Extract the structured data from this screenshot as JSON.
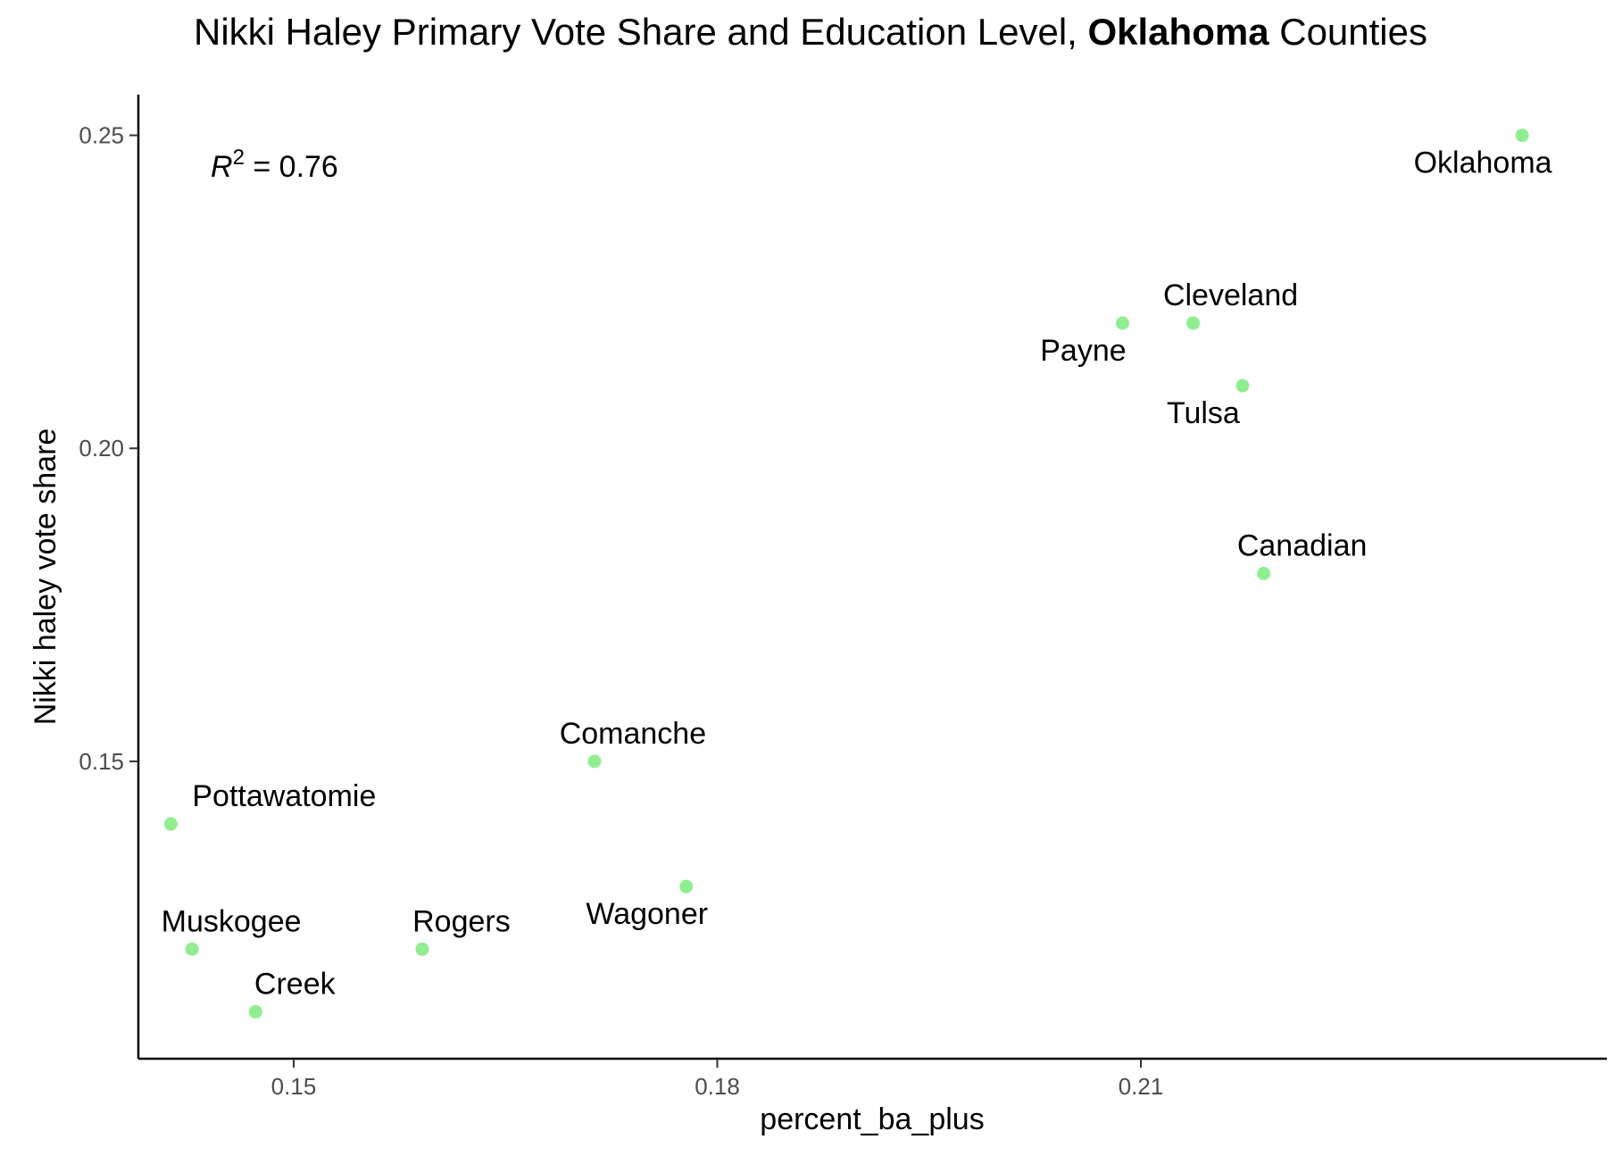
{
  "chart_data": {
    "type": "scatter",
    "title_parts": [
      {
        "text": "Nikki Haley Primary Vote Share and Education Level, ",
        "bold": false
      },
      {
        "text": "Oklahoma",
        "bold": true
      },
      {
        "text": " Counties",
        "bold": false
      }
    ],
    "xlabel": "percent_ba_plus",
    "ylabel": "Nikki haley vote share",
    "xlim": [
      0.139,
      0.243
    ],
    "ylim": [
      0.1025,
      0.2565
    ],
    "x_ticks": [
      0.15,
      0.18,
      0.21
    ],
    "x_tick_labels": [
      "0.15",
      "0.18",
      "0.21"
    ],
    "y_ticks": [
      0.15,
      0.2,
      0.25
    ],
    "y_tick_labels": [
      "0.15",
      "0.20",
      "0.25"
    ],
    "grid": false,
    "point_color": "#90EE90",
    "annotation": {
      "symbol": "R",
      "superscript": "2",
      "text": " = 0.76"
    },
    "points": [
      {
        "name": "Oklahoma",
        "x": 0.237,
        "y": 0.25,
        "label_pos": "below"
      },
      {
        "name": "Cleveland",
        "x": 0.2137,
        "y": 0.22,
        "label_pos": "above"
      },
      {
        "name": "Payne",
        "x": 0.2087,
        "y": 0.22,
        "label_pos": "below"
      },
      {
        "name": "Tulsa",
        "x": 0.2172,
        "y": 0.21,
        "label_pos": "below"
      },
      {
        "name": "Canadian",
        "x": 0.2187,
        "y": 0.18,
        "label_pos": "above"
      },
      {
        "name": "Comanche",
        "x": 0.1713,
        "y": 0.15,
        "label_pos": "above"
      },
      {
        "name": "Pottawatomie",
        "x": 0.1413,
        "y": 0.14,
        "label_pos": "above"
      },
      {
        "name": "Wagoner",
        "x": 0.1778,
        "y": 0.13,
        "label_pos": "below"
      },
      {
        "name": "Muskogee",
        "x": 0.1428,
        "y": 0.12,
        "label_pos": "above"
      },
      {
        "name": "Rogers",
        "x": 0.1591,
        "y": 0.12,
        "label_pos": "above"
      },
      {
        "name": "Creek",
        "x": 0.1473,
        "y": 0.11,
        "label_pos": "above"
      }
    ]
  }
}
